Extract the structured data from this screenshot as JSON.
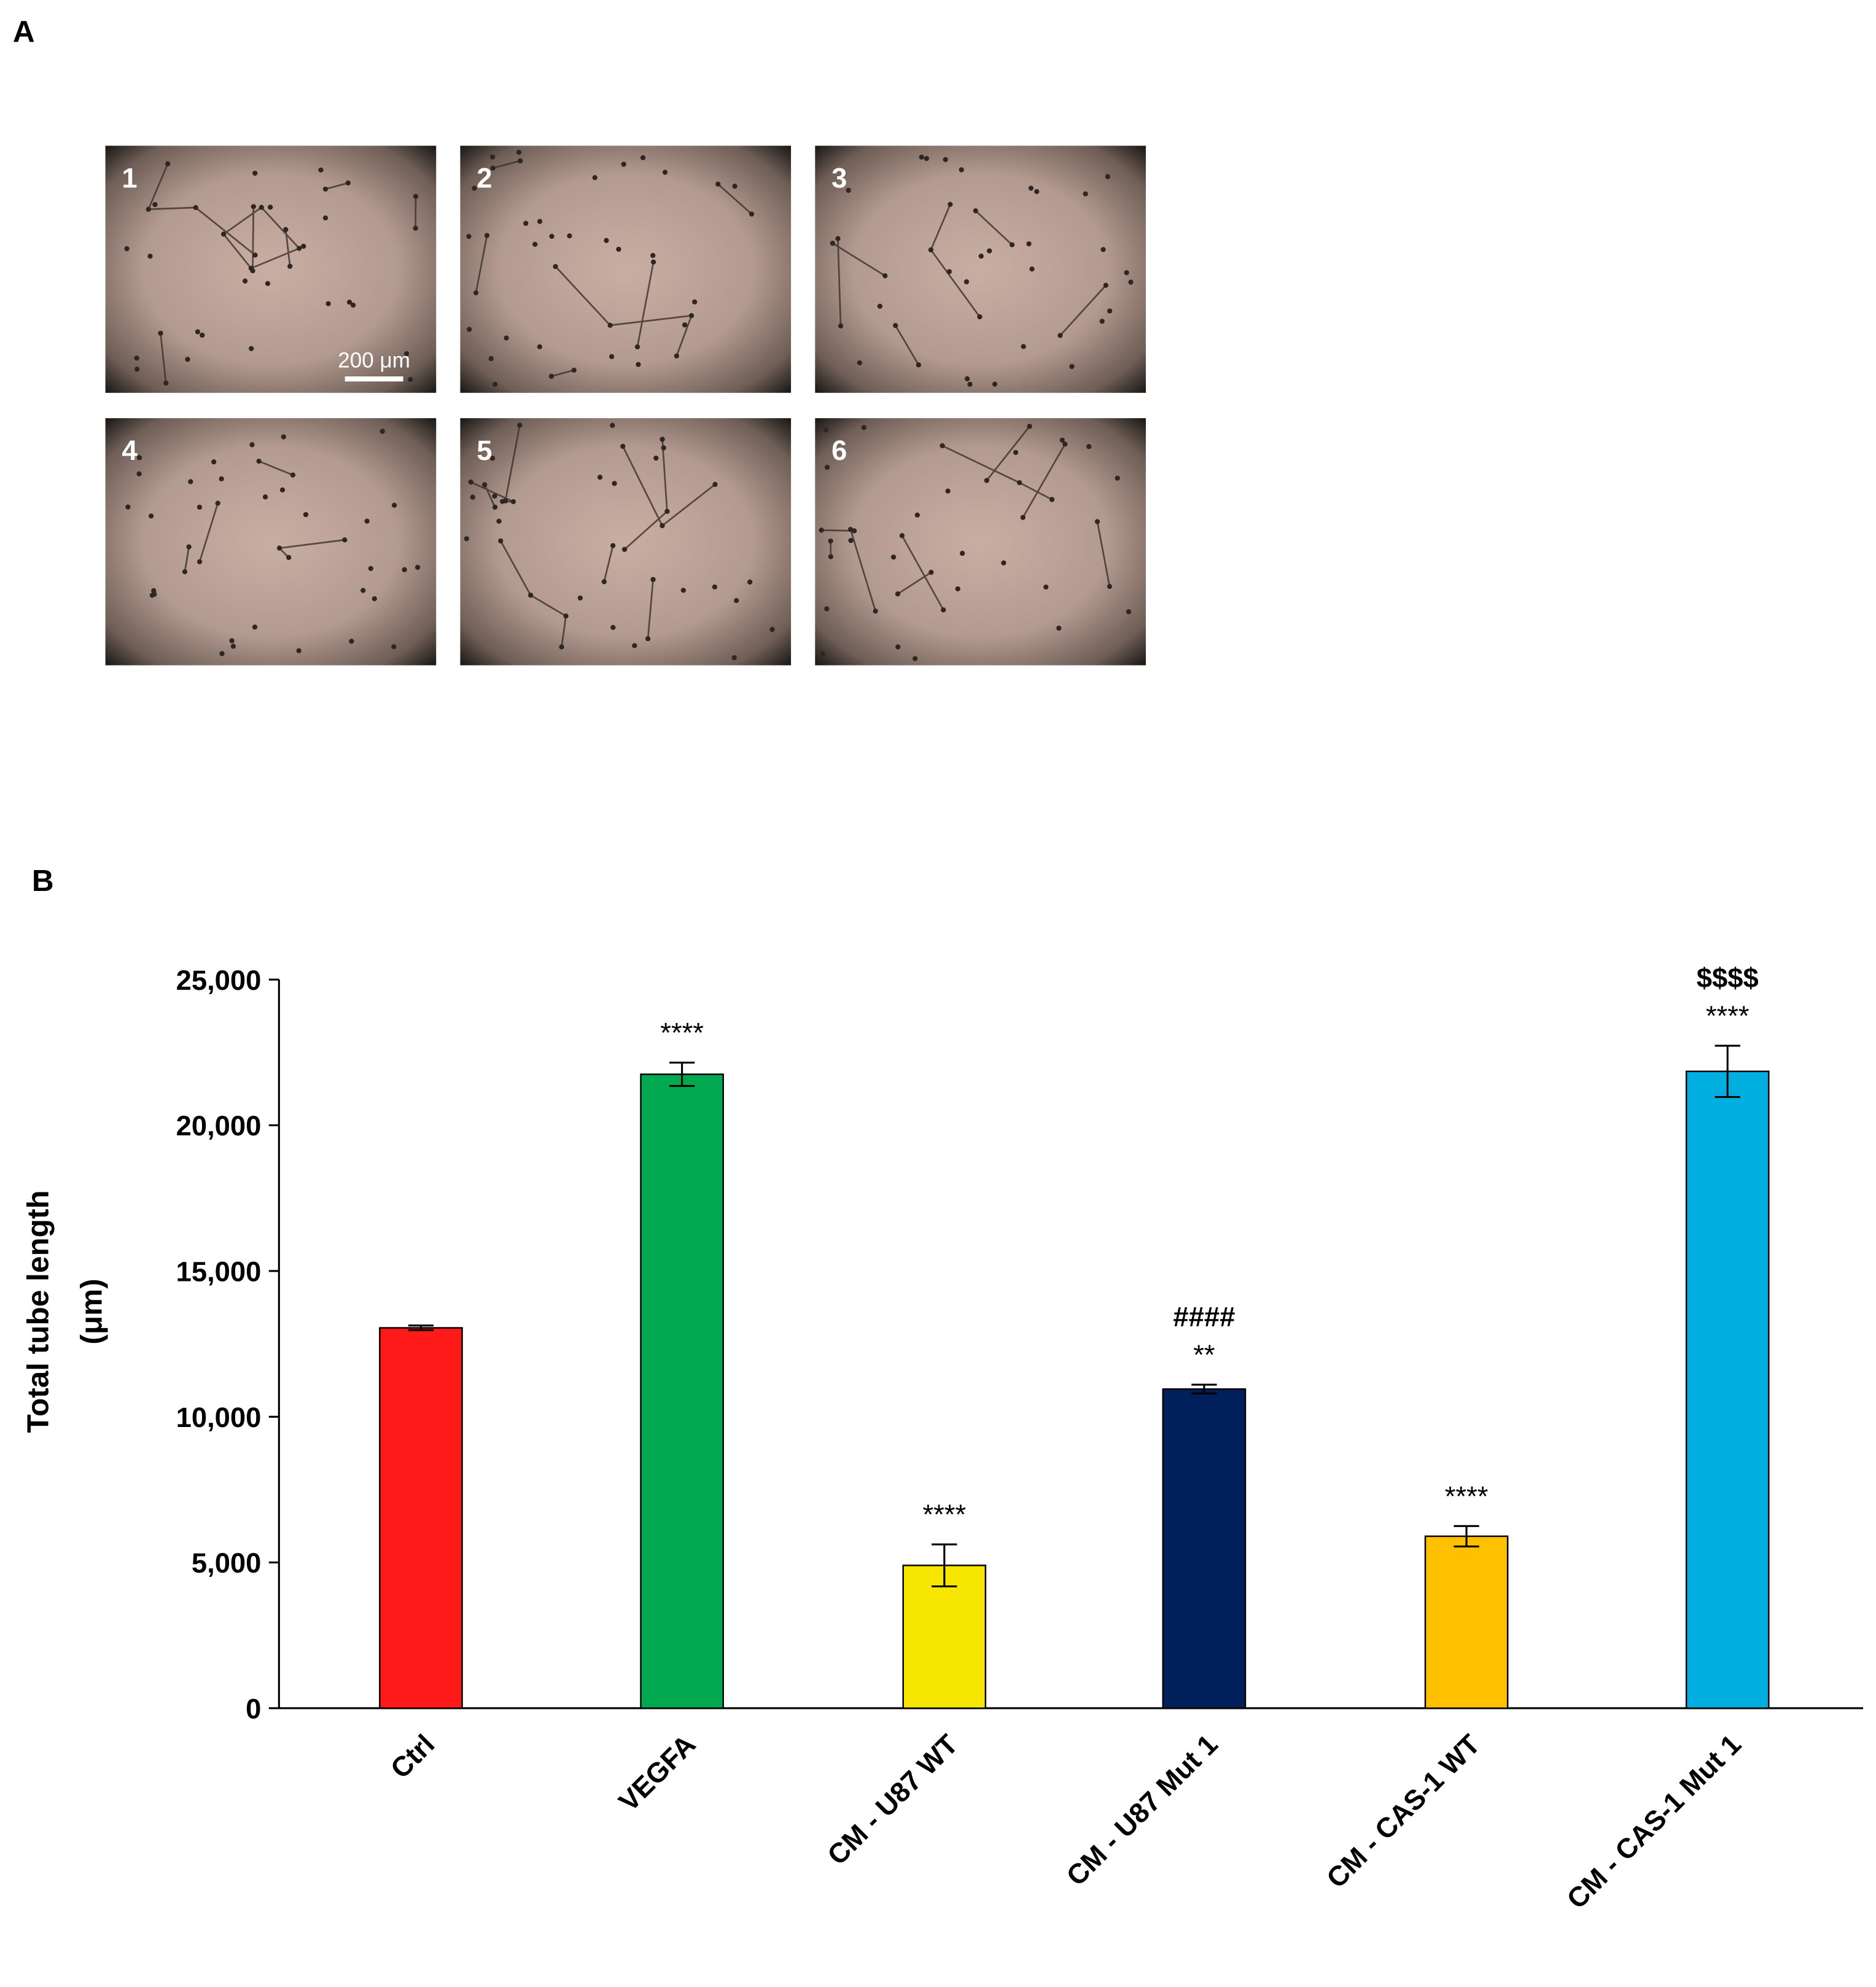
{
  "panel_labels": [
    "A",
    "B"
  ],
  "micrographs": {
    "labels": [
      "1",
      "2",
      "3",
      "4",
      "5",
      "6"
    ],
    "scale_bar": "200 μm"
  },
  "chart_data": {
    "type": "bar",
    "y_label": [
      "Total tube length",
      "(μm)"
    ],
    "categories": [
      "Ctrl",
      "VEGFA",
      "CM - U87 WT",
      "CM - U87 Mut 1",
      "CM - CAS-1 WT",
      "CM - CAS-1 Mut 1"
    ],
    "values": [
      13050,
      21750,
      4900,
      10950,
      5900,
      21850
    ],
    "errors": [
      80,
      400,
      720,
      150,
      350,
      880
    ],
    "colors": [
      "#ff1a1a",
      "#00a84f",
      "#f7e600",
      "#00205b",
      "#ffc000",
      "#00aedf"
    ],
    "annotations": [
      null,
      [
        "****"
      ],
      [
        "****"
      ],
      [
        "####",
        "**"
      ],
      [
        "****"
      ],
      [
        "$$$$",
        "****"
      ]
    ],
    "ylim": [
      0,
      25000
    ],
    "yticks": [
      0,
      {
        "value": 5000,
        "label": "5,000"
      },
      {
        "value": 10000,
        "label": "10,000"
      },
      {
        "value": 15000,
        "label": "15,000"
      },
      {
        "value": 20000,
        "label": "20,000"
      },
      {
        "value": 25000,
        "label": "25,000"
      }
    ],
    "grid": false
  }
}
